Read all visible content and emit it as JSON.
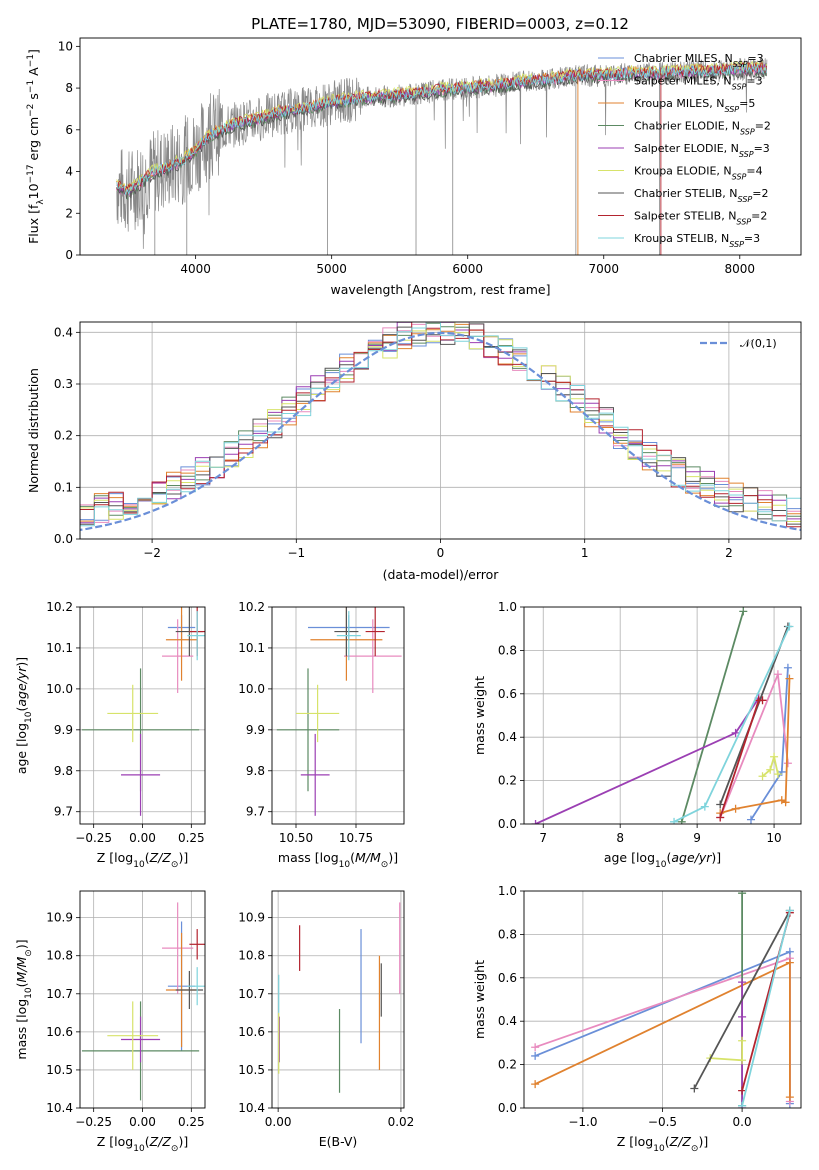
{
  "title": "PLATE=1780, MJD=53090, FIBERID=0003, z=0.12",
  "colors": {
    "Chabrier MILES": "#6a8fd8",
    "Salpeter MILES": "#e88bbf",
    "Kroupa MILES": "#e0822f",
    "Chabrier ELODIE": "#5c8a63",
    "Salpeter ELODIE": "#9b3fb3",
    "Kroupa ELODIE": "#d7e36a",
    "Chabrier STELIB": "#555555",
    "Salpeter STELIB": "#b3242f",
    "Kroupa STELIB": "#7fd4dc",
    "data": "#888888",
    "normal": "#6a8fd8"
  },
  "chart_data": [
    {
      "type": "line",
      "panel": "spectrum",
      "xlabel": "wavelength [Angstrom, rest frame]",
      "ylabel": "Flux [f_λ 10^-17 erg cm^-2 s^-1 A^-1]",
      "xlim": [
        3150,
        8450
      ],
      "ylim": [
        0,
        10.4
      ],
      "xticks": [
        4000,
        5000,
        6000,
        7000,
        8000
      ],
      "yticks": [
        0,
        2,
        4,
        6,
        8,
        10
      ],
      "grid": false,
      "legend_position": "top-right",
      "legend": [
        {
          "name": "Chabrier MILES",
          "nssp": "3"
        },
        {
          "name": "Salpeter MILES",
          "nssp": "3"
        },
        {
          "name": "Kroupa MILES",
          "nssp": "5"
        },
        {
          "name": "Chabrier ELODIE",
          "nssp": "2"
        },
        {
          "name": "Salpeter ELODIE",
          "nssp": "3"
        },
        {
          "name": "Kroupa ELODIE",
          "nssp": "4"
        },
        {
          "name": "Chabrier STELIB",
          "nssp": "2"
        },
        {
          "name": "Salpeter STELIB",
          "nssp": "2"
        },
        {
          "name": "Kroupa STELIB",
          "nssp": "3"
        }
      ],
      "continuum": [
        [
          3420,
          3.3
        ],
        [
          3500,
          3.0
        ],
        [
          3600,
          3.5
        ],
        [
          3700,
          4.0
        ],
        [
          3800,
          4.2
        ],
        [
          3900,
          4.5
        ],
        [
          4000,
          5.0
        ],
        [
          4100,
          5.7
        ],
        [
          4200,
          6.0
        ],
        [
          4300,
          6.3
        ],
        [
          4400,
          6.4
        ],
        [
          4500,
          6.6
        ],
        [
          4600,
          6.8
        ],
        [
          4800,
          7.0
        ],
        [
          5000,
          7.3
        ],
        [
          5200,
          7.5
        ],
        [
          5400,
          7.6
        ],
        [
          5600,
          7.7
        ],
        [
          5800,
          7.9
        ],
        [
          6000,
          8.0
        ],
        [
          6200,
          8.1
        ],
        [
          6400,
          8.3
        ],
        [
          6600,
          8.4
        ],
        [
          6800,
          8.6
        ],
        [
          7000,
          8.6
        ],
        [
          7200,
          8.7
        ],
        [
          7400,
          8.7
        ],
        [
          7600,
          8.8
        ],
        [
          7800,
          8.8
        ],
        [
          8000,
          8.9
        ],
        [
          8200,
          8.9
        ]
      ]
    },
    {
      "type": "histogram",
      "panel": "residuals",
      "xlabel": "(data-model)/error",
      "ylabel": "Normed distribution",
      "xlim": [
        -2.5,
        2.5
      ],
      "ylim": [
        0,
        0.42
      ],
      "xticks": [
        -2,
        -1,
        0,
        1,
        2
      ],
      "yticks": [
        0.0,
        0.1,
        0.2,
        0.3,
        0.4
      ],
      "grid": true,
      "legend_position": "top-right",
      "reference": {
        "name": "𝒩(0,1)",
        "mean": 0,
        "sigma": 1
      },
      "bin_width": 0.1
    },
    {
      "type": "scatter",
      "panel": "Z-age",
      "xlabel": "Z [log10(Z/Z⊙)]",
      "ylabel": "age [log10(age/yr)]",
      "xlim": [
        -0.32,
        0.32
      ],
      "ylim": [
        9.67,
        10.2
      ],
      "xticks": [
        -0.25,
        0.0,
        0.25
      ],
      "yticks": [
        9.7,
        9.8,
        9.9,
        10.0,
        10.1,
        10.2
      ],
      "grid": true,
      "points": [
        {
          "model": "Chabrier MILES",
          "x": 0.2,
          "xerr": 0.07,
          "y": 10.15,
          "yerr": 0.03
        },
        {
          "model": "Salpeter MILES",
          "x": 0.18,
          "xerr": 0.08,
          "y": 10.08,
          "yerr": 0.09
        },
        {
          "model": "Kroupa MILES",
          "x": 0.2,
          "xerr": 0.08,
          "y": 10.12,
          "yerr": 0.1
        },
        {
          "model": "Chabrier ELODIE",
          "x": -0.01,
          "xerr": 0.3,
          "y": 9.9,
          "yerr": 0.15
        },
        {
          "model": "Salpeter ELODIE",
          "x": -0.01,
          "xerr": 0.1,
          "y": 9.79,
          "yerr": 0.1
        },
        {
          "model": "Kroupa ELODIE",
          "x": -0.05,
          "xerr": 0.13,
          "y": 9.94,
          "yerr": 0.07
        },
        {
          "model": "Chabrier STELIB",
          "x": 0.24,
          "xerr": 0.07,
          "y": 10.14,
          "yerr": 0.06
        },
        {
          "model": "Salpeter STELIB",
          "x": 0.28,
          "xerr": 0.04,
          "y": 10.14,
          "yerr": 0.06
        },
        {
          "model": "Kroupa STELIB",
          "x": 0.28,
          "xerr": 0.05,
          "y": 10.13,
          "yerr": 0.06
        }
      ]
    },
    {
      "type": "scatter",
      "panel": "mass-age",
      "xlabel": "mass [log10(M/M⊙)]",
      "ylabel": "",
      "xlim": [
        10.4,
        10.95
      ],
      "ylim": [
        9.67,
        10.2
      ],
      "xticks": [
        10.5,
        10.75
      ],
      "yticks": [
        9.7,
        9.8,
        9.9,
        10.0,
        10.1,
        10.2
      ],
      "grid": true,
      "points": [
        {
          "model": "Chabrier MILES",
          "x": 10.72,
          "xerr": 0.17,
          "y": 10.15,
          "yerr": 0.03
        },
        {
          "model": "Salpeter MILES",
          "x": 10.82,
          "xerr": 0.12,
          "y": 10.08,
          "yerr": 0.09
        },
        {
          "model": "Kroupa MILES",
          "x": 10.71,
          "xerr": 0.15,
          "y": 10.12,
          "yerr": 0.1
        },
        {
          "model": "Chabrier ELODIE",
          "x": 10.55,
          "xerr": 0.13,
          "y": 9.9,
          "yerr": 0.15
        },
        {
          "model": "Salpeter ELODIE",
          "x": 10.58,
          "xerr": 0.06,
          "y": 9.79,
          "yerr": 0.1
        },
        {
          "model": "Kroupa ELODIE",
          "x": 10.59,
          "xerr": 0.09,
          "y": 9.94,
          "yerr": 0.07
        },
        {
          "model": "Chabrier STELIB",
          "x": 10.71,
          "xerr": 0.05,
          "y": 10.14,
          "yerr": 0.06
        },
        {
          "model": "Salpeter STELIB",
          "x": 10.83,
          "xerr": 0.04,
          "y": 10.14,
          "yerr": 0.06
        },
        {
          "model": "Kroupa STELIB",
          "x": 10.72,
          "xerr": 0.05,
          "y": 10.13,
          "yerr": 0.06
        }
      ]
    },
    {
      "type": "line",
      "panel": "age-weight",
      "xlabel": "age [log10(age/yr)]",
      "ylabel": "mass weight",
      "xlim": [
        6.75,
        10.35
      ],
      "ylim": [
        0,
        1.0
      ],
      "xticks": [
        7,
        8,
        9,
        10
      ],
      "yticks": [
        0.0,
        0.2,
        0.4,
        0.6,
        0.8,
        1.0
      ],
      "grid": true,
      "series": [
        {
          "model": "Chabrier MILES",
          "points": [
            [
              9.7,
              0.02
            ],
            [
              10.1,
              0.24
            ],
            [
              10.18,
              0.72
            ]
          ]
        },
        {
          "model": "Salpeter MILES",
          "points": [
            [
              9.3,
              0.03
            ],
            [
              10.05,
              0.69
            ],
            [
              10.18,
              0.28
            ]
          ]
        },
        {
          "model": "Kroupa MILES",
          "points": [
            [
              9.3,
              0.05
            ],
            [
              9.5,
              0.07
            ],
            [
              10.1,
              0.11
            ],
            [
              10.15,
              0.1
            ],
            [
              10.2,
              0.67
            ]
          ]
        },
        {
          "model": "Chabrier ELODIE",
          "points": [
            [
              8.8,
              0.01
            ],
            [
              9.6,
              0.98
            ]
          ]
        },
        {
          "model": "Salpeter ELODIE",
          "points": [
            [
              6.9,
              0.0
            ],
            [
              9.5,
              0.42
            ],
            [
              9.8,
              0.58
            ]
          ]
        },
        {
          "model": "Kroupa ELODIE",
          "points": [
            [
              9.85,
              0.22
            ],
            [
              9.95,
              0.25
            ],
            [
              10.0,
              0.31
            ],
            [
              10.05,
              0.23
            ]
          ]
        },
        {
          "model": "Chabrier STELIB",
          "points": [
            [
              9.3,
              0.09
            ],
            [
              10.18,
              0.91
            ]
          ]
        },
        {
          "model": "Salpeter STELIB",
          "points": [
            [
              9.3,
              0.03
            ],
            [
              9.8,
              0.57
            ],
            [
              9.85,
              0.57
            ]
          ]
        },
        {
          "model": "Kroupa STELIB",
          "points": [
            [
              8.7,
              0.01
            ],
            [
              9.1,
              0.08
            ],
            [
              10.2,
              0.91
            ]
          ]
        }
      ]
    },
    {
      "type": "scatter",
      "panel": "Z-mass",
      "xlabel": "Z [log10(Z/Z⊙)]",
      "ylabel": "mass [log10(M/M⊙)]",
      "xlim": [
        -0.32,
        0.32
      ],
      "ylim": [
        10.4,
        10.97
      ],
      "xticks": [
        -0.25,
        0.0,
        0.25
      ],
      "yticks": [
        10.4,
        10.5,
        10.6,
        10.7,
        10.8,
        10.9
      ],
      "grid": true,
      "points": [
        {
          "model": "Chabrier MILES",
          "x": 0.2,
          "xerr": 0.07,
          "y": 10.72,
          "yerr": 0.17
        },
        {
          "model": "Salpeter MILES",
          "x": 0.18,
          "xerr": 0.08,
          "y": 10.82,
          "yerr": 0.12
        },
        {
          "model": "Kroupa MILES",
          "x": 0.2,
          "xerr": 0.08,
          "y": 10.71,
          "yerr": 0.15
        },
        {
          "model": "Chabrier ELODIE",
          "x": -0.01,
          "xerr": 0.3,
          "y": 10.55,
          "yerr": 0.13
        },
        {
          "model": "Salpeter ELODIE",
          "x": -0.01,
          "xerr": 0.1,
          "y": 10.58,
          "yerr": 0.06
        },
        {
          "model": "Kroupa ELODIE",
          "x": -0.05,
          "xerr": 0.13,
          "y": 10.59,
          "yerr": 0.09
        },
        {
          "model": "Chabrier STELIB",
          "x": 0.24,
          "xerr": 0.07,
          "y": 10.71,
          "yerr": 0.05
        },
        {
          "model": "Salpeter STELIB",
          "x": 0.28,
          "xerr": 0.04,
          "y": 10.83,
          "yerr": 0.04
        },
        {
          "model": "Kroupa STELIB",
          "x": 0.28,
          "xerr": 0.05,
          "y": 10.72,
          "yerr": 0.05
        }
      ]
    },
    {
      "type": "scatter",
      "panel": "ebv-mass",
      "xlabel": "E(B-V)",
      "ylabel": "",
      "xlim": [
        -0.001,
        0.0205
      ],
      "ylim": [
        10.4,
        10.97
      ],
      "xticks": [
        0.0,
        0.02
      ],
      "xticklabels": [
        "0.00",
        "0.02"
      ],
      "yticks": [
        10.4,
        10.5,
        10.6,
        10.7,
        10.8,
        10.9
      ],
      "grid": true,
      "points": [
        {
          "model": "Chabrier MILES",
          "x": 0.0135,
          "y": 10.72,
          "yerr": 0.15
        },
        {
          "model": "Salpeter MILES",
          "x": 0.0198,
          "y": 10.82,
          "yerr": 0.12
        },
        {
          "model": "Kroupa MILES",
          "x": 0.0165,
          "y": 10.65,
          "yerr": 0.15
        },
        {
          "model": "Chabrier ELODIE",
          "x": 0.01,
          "y": 10.55,
          "yerr": 0.11
        },
        {
          "model": "Salpeter ELODIE",
          "x": 0.0002,
          "y": 10.58,
          "yerr": 0.06
        },
        {
          "model": "Kroupa ELODIE",
          "x": 0.0001,
          "y": 10.57,
          "yerr": 0.08
        },
        {
          "model": "Chabrier STELIB",
          "x": 0.0168,
          "y": 10.71,
          "yerr": 0.07
        },
        {
          "model": "Salpeter STELIB",
          "x": 0.0035,
          "y": 10.82,
          "yerr": 0.06
        },
        {
          "model": "Kroupa STELIB",
          "x": 0.0001,
          "y": 10.7,
          "yerr": 0.05
        }
      ]
    },
    {
      "type": "line",
      "panel": "Z-weight",
      "xlabel": "Z [log10(Z/Z⊙)]",
      "ylabel": "mass weight",
      "xlim": [
        -1.37,
        0.37
      ],
      "ylim": [
        0,
        1.0
      ],
      "xticks": [
        -1.0,
        -0.5,
        0.0
      ],
      "yticks": [
        0.0,
        0.2,
        0.4,
        0.6,
        0.8,
        1.0
      ],
      "grid": true,
      "series": [
        {
          "model": "Chabrier MILES",
          "points": [
            [
              -1.3,
              0.24
            ],
            [
              0.3,
              0.72
            ],
            [
              0.3,
              0.02
            ]
          ]
        },
        {
          "model": "Salpeter MILES",
          "points": [
            [
              -1.3,
              0.28
            ],
            [
              0.3,
              0.69
            ],
            [
              0.3,
              0.03
            ]
          ]
        },
        {
          "model": "Kroupa MILES",
          "points": [
            [
              -1.3,
              0.11
            ],
            [
              0.3,
              0.67
            ],
            [
              0.3,
              0.05
            ]
          ]
        },
        {
          "model": "Chabrier ELODIE",
          "points": [
            [
              0.0,
              0.99
            ],
            [
              0.0,
              0.01
            ]
          ]
        },
        {
          "model": "Salpeter ELODIE",
          "points": [
            [
              0.0,
              0.58
            ],
            [
              0.0,
              0.42
            ],
            [
              0.0,
              0.0
            ]
          ]
        },
        {
          "model": "Kroupa ELODIE",
          "points": [
            [
              -0.2,
              0.23
            ],
            [
              0.0,
              0.22
            ],
            [
              0.0,
              0.31
            ]
          ]
        },
        {
          "model": "Chabrier STELIB",
          "points": [
            [
              -0.3,
              0.09
            ],
            [
              0.3,
              0.91
            ]
          ]
        },
        {
          "model": "Salpeter STELIB",
          "points": [
            [
              0.0,
              0.08
            ],
            [
              0.3,
              0.9
            ]
          ]
        },
        {
          "model": "Kroupa STELIB",
          "points": [
            [
              0.0,
              0.01
            ],
            [
              0.3,
              0.91
            ]
          ]
        }
      ]
    }
  ]
}
